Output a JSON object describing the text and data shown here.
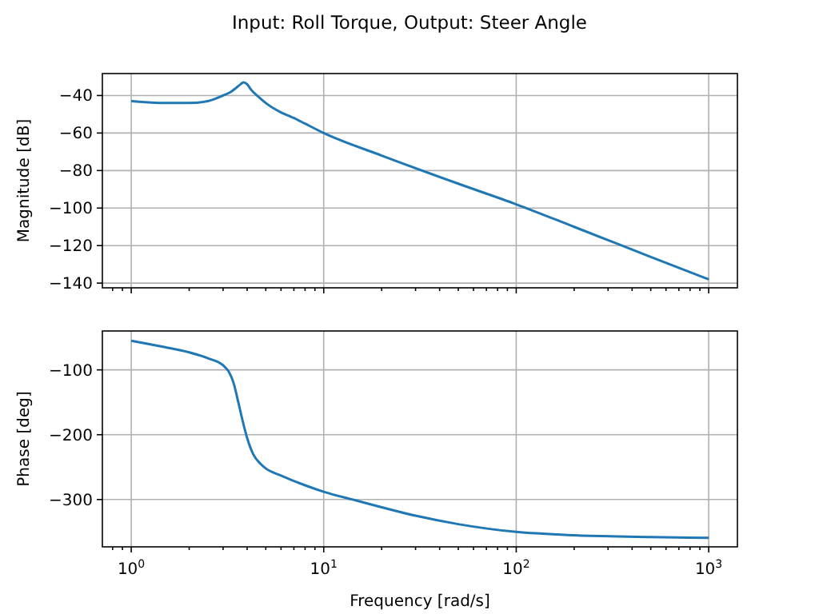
{
  "chart_data": [
    {
      "type": "line",
      "title": "Input: Roll Torque, Output: Steer Angle",
      "ylabel": "Magnitude [dB]",
      "log": "x",
      "grid": true,
      "tick_labels": "y",
      "xlim": [
        0.708,
        1410
      ],
      "ylim": [
        -142.5,
        -28.3
      ],
      "xticks": [
        {
          "value": 0.8,
          "label": null
        },
        {
          "value": 0.9,
          "label": null
        },
        {
          "value": 1,
          "label": null
        },
        {
          "value": 2,
          "label": null
        },
        {
          "value": 3,
          "label": null
        },
        {
          "value": 4,
          "label": null
        },
        {
          "value": 5,
          "label": null
        },
        {
          "value": 6,
          "label": null
        },
        {
          "value": 7,
          "label": null
        },
        {
          "value": 8,
          "label": null
        },
        {
          "value": 9,
          "label": null
        },
        {
          "value": 10,
          "label": null
        },
        {
          "value": 20,
          "label": null
        },
        {
          "value": 30,
          "label": null
        },
        {
          "value": 40,
          "label": null
        },
        {
          "value": 50,
          "label": null
        },
        {
          "value": 60,
          "label": null
        },
        {
          "value": 70,
          "label": null
        },
        {
          "value": 80,
          "label": null
        },
        {
          "value": 90,
          "label": null
        },
        {
          "value": 100,
          "label": null
        },
        {
          "value": 200,
          "label": null
        },
        {
          "value": 300,
          "label": null
        },
        {
          "value": 400,
          "label": null
        },
        {
          "value": 500,
          "label": null
        },
        {
          "value": 600,
          "label": null
        },
        {
          "value": 700,
          "label": null
        },
        {
          "value": 800,
          "label": null
        },
        {
          "value": 900,
          "label": null
        },
        {
          "value": 1000,
          "label": null
        }
      ],
      "yticks": [
        {
          "value": -40,
          "label": "−40"
        },
        {
          "value": -60,
          "label": "−60"
        },
        {
          "value": -80,
          "label": "−80"
        },
        {
          "value": -100,
          "label": "−100"
        },
        {
          "value": -120,
          "label": "−120"
        },
        {
          "value": -140,
          "label": "−140"
        }
      ],
      "series": [
        {
          "color": "#1f77b4",
          "x": [
            1,
            1.5,
            2,
            2.5,
            3,
            3.3,
            3.5,
            3.7,
            3.83,
            4,
            4.2,
            4.5,
            5,
            6,
            7,
            8,
            10,
            20,
            50,
            100,
            200,
            500,
            1000
          ],
          "values": [
            -43,
            -44,
            -44,
            -43,
            -40,
            -38,
            -36,
            -34,
            -33,
            -34,
            -37,
            -40,
            -44,
            -49,
            -52,
            -55,
            -60,
            -72,
            -87,
            -98,
            -110,
            -126,
            -138
          ]
        }
      ]
    },
    {
      "type": "line",
      "xlabel": "Frequency [rad/s]",
      "ylabel": "Phase [deg]",
      "log": "x",
      "grid": true,
      "xlim": [
        0.708,
        1410
      ],
      "ylim": [
        -373,
        -40
      ],
      "xticks": [
        {
          "value": 0.8,
          "label": null
        },
        {
          "value": 0.9,
          "label": null
        },
        {
          "value": 1,
          "label": "10$^{0}$"
        },
        {
          "value": 2,
          "label": null
        },
        {
          "value": 3,
          "label": null
        },
        {
          "value": 4,
          "label": null
        },
        {
          "value": 5,
          "label": null
        },
        {
          "value": 6,
          "label": null
        },
        {
          "value": 7,
          "label": null
        },
        {
          "value": 8,
          "label": null
        },
        {
          "value": 9,
          "label": null
        },
        {
          "value": 10,
          "label": "10$^{1}$"
        },
        {
          "value": 20,
          "label": null
        },
        {
          "value": 30,
          "label": null
        },
        {
          "value": 40,
          "label": null
        },
        {
          "value": 50,
          "label": null
        },
        {
          "value": 60,
          "label": null
        },
        {
          "value": 70,
          "label": null
        },
        {
          "value": 80,
          "label": null
        },
        {
          "value": 90,
          "label": null
        },
        {
          "value": 100,
          "label": "10$^{2}$"
        },
        {
          "value": 200,
          "label": null
        },
        {
          "value": 300,
          "label": null
        },
        {
          "value": 400,
          "label": null
        },
        {
          "value": 500,
          "label": null
        },
        {
          "value": 600,
          "label": null
        },
        {
          "value": 700,
          "label": null
        },
        {
          "value": 800,
          "label": null
        },
        {
          "value": 900,
          "label": null
        },
        {
          "value": 1000,
          "label": "10$^{3}$"
        }
      ],
      "yticks": [
        {
          "value": -100,
          "label": "−100"
        },
        {
          "value": -200,
          "label": "−200"
        },
        {
          "value": -300,
          "label": "−300"
        }
      ],
      "series": [
        {
          "color": "#1f77b4",
          "x": [
            1,
            1.5,
            2,
            2.5,
            3,
            3.2,
            3.4,
            3.6,
            3.8,
            4,
            4.3,
            4.7,
            5,
            6,
            8,
            10,
            15,
            20,
            30,
            50,
            100,
            200,
            500,
            1000
          ],
          "values": [
            -55,
            -65,
            -73,
            -82,
            -93,
            -102,
            -120,
            -150,
            -180,
            -205,
            -230,
            -245,
            -252,
            -263,
            -278,
            -288,
            -302,
            -312,
            -325,
            -338,
            -350,
            -355,
            -358,
            -359
          ]
        }
      ]
    }
  ]
}
